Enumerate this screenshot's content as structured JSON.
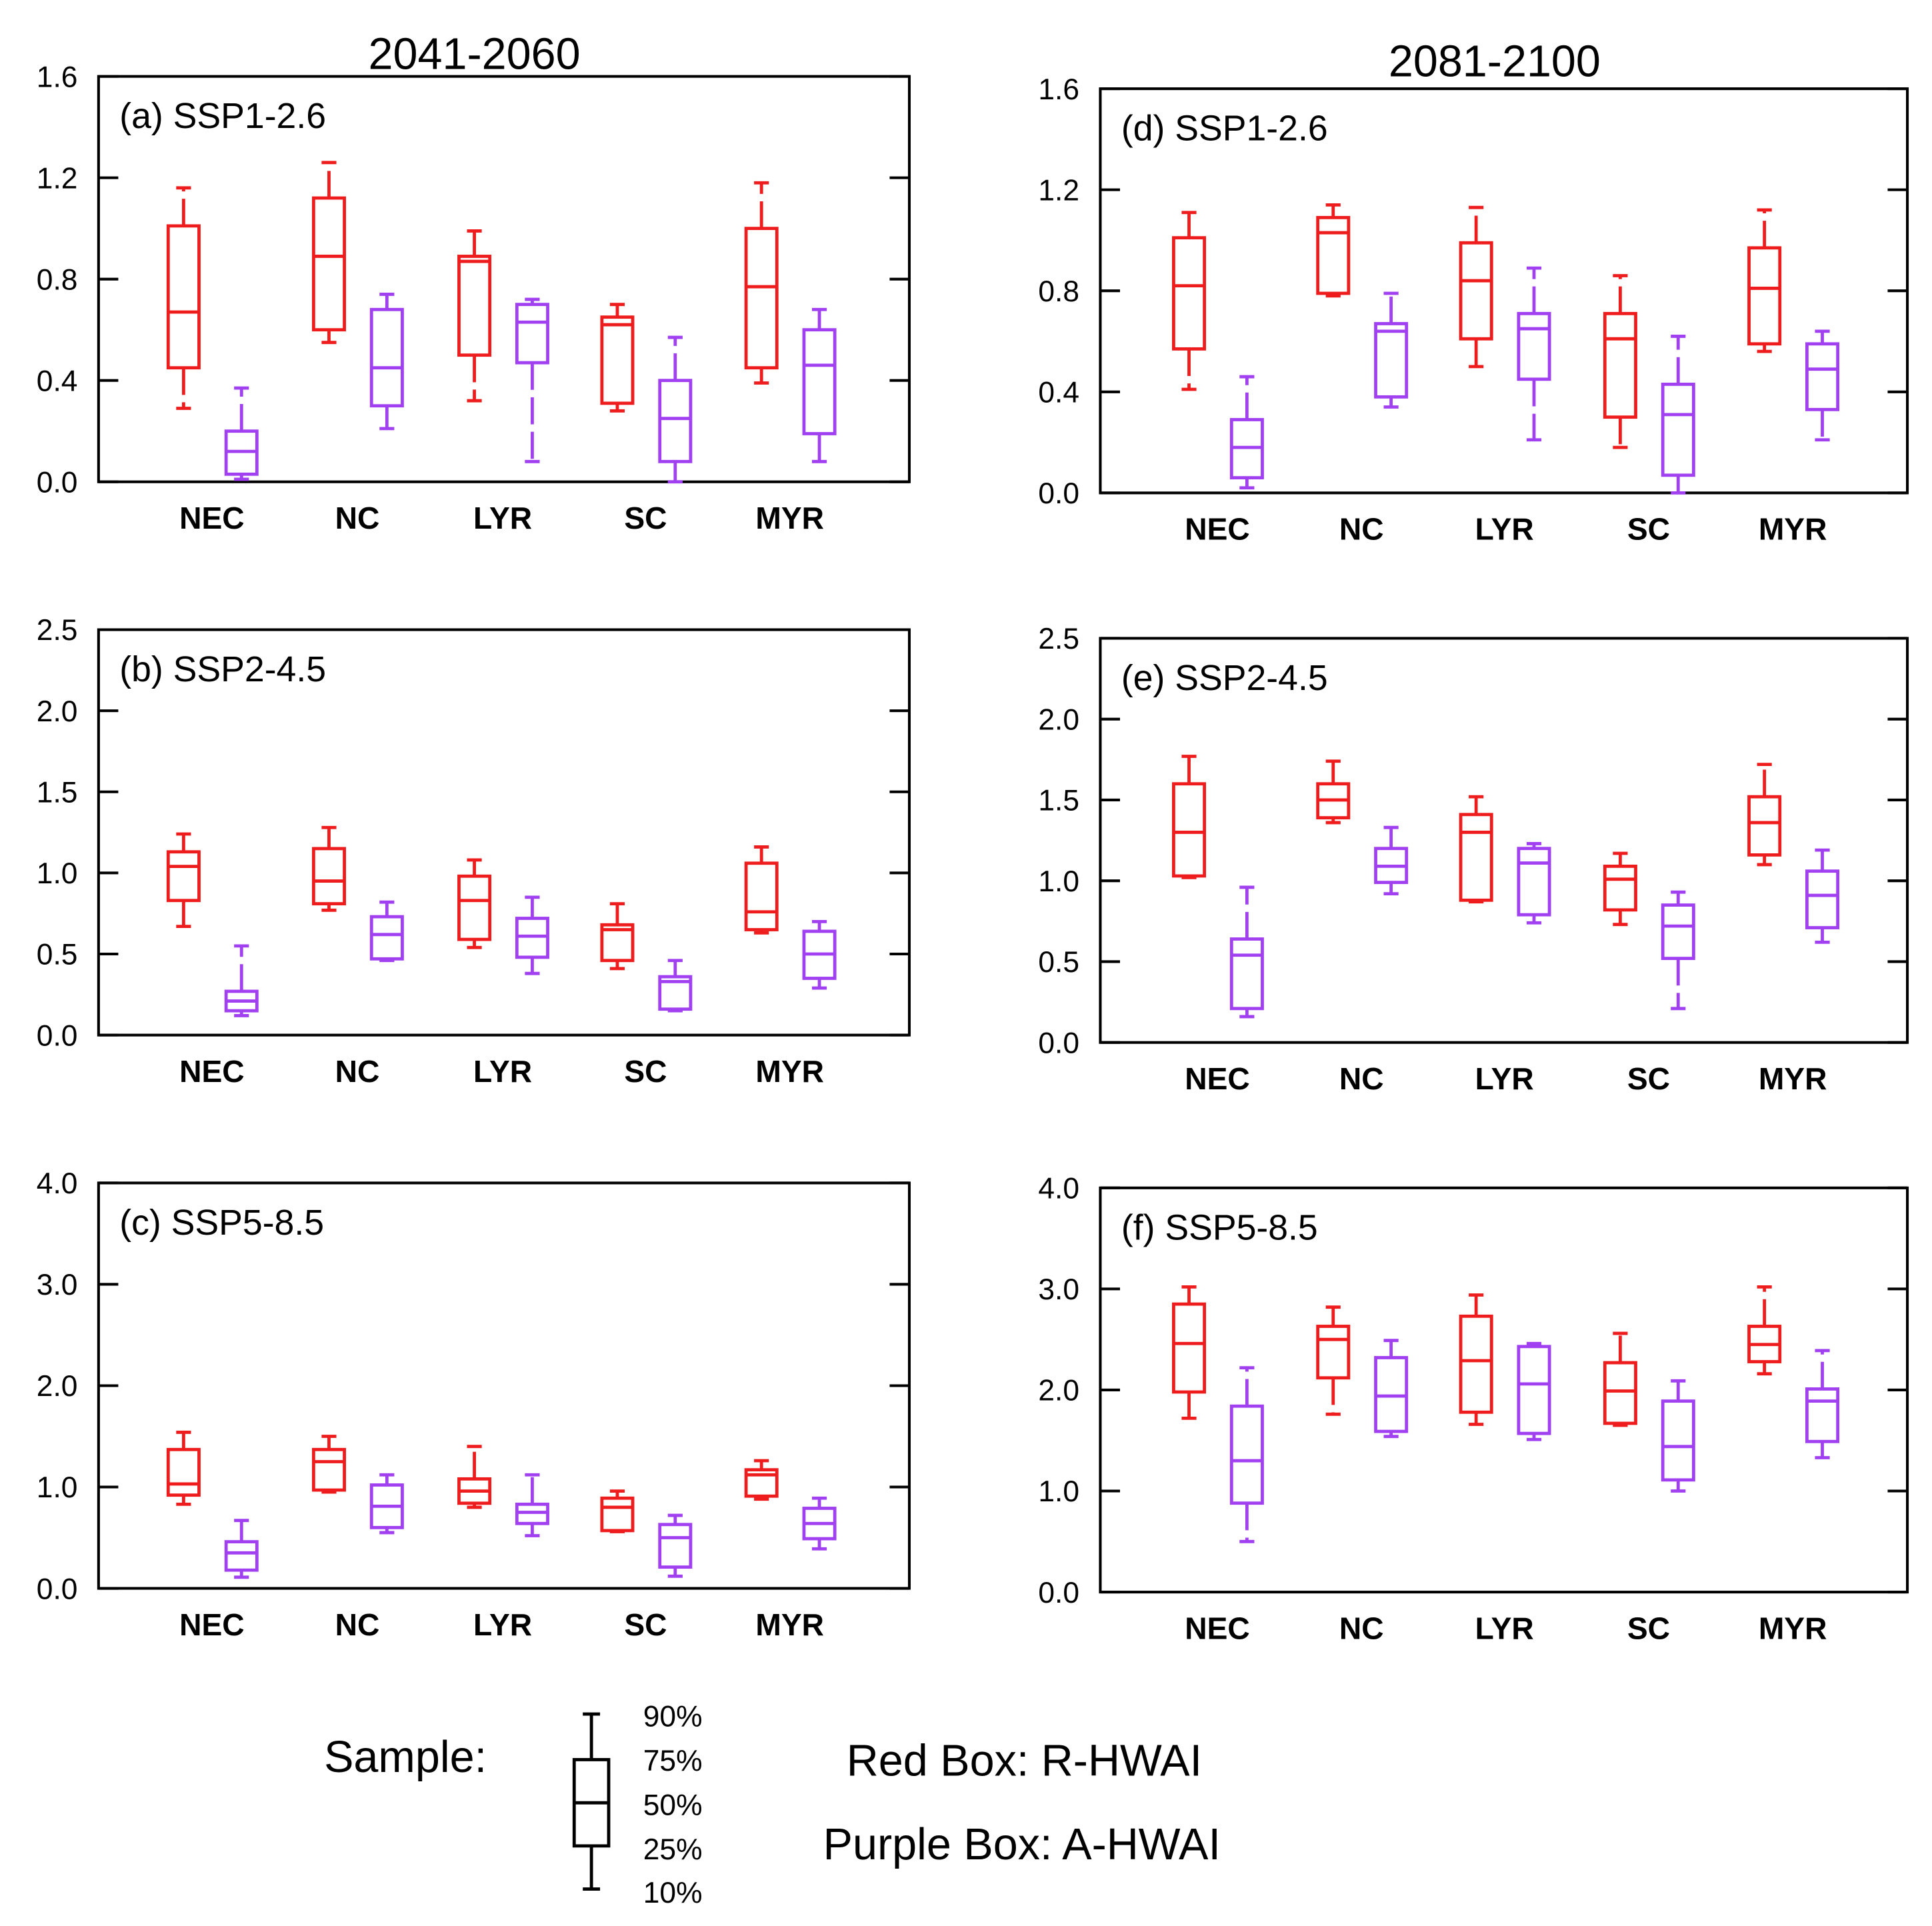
{
  "column_titles": [
    "2041-2060",
    "2081-2100"
  ],
  "legend": {
    "sample_label": "Sample:",
    "percentiles": [
      "90%",
      "75%",
      "50%",
      "25%",
      "10%"
    ],
    "red_label": "Red Box: R-HWAI",
    "purple_label": "Purple Box: A-HWAI"
  },
  "chart_data": [
    {
      "type": "box",
      "title": "(a) SSP1-2.6",
      "categories": [
        "NEC",
        "NC",
        "LYR",
        "SC",
        "MYR"
      ],
      "ylim": [
        0,
        1.6
      ],
      "yticks": [
        0.0,
        0.4,
        0.8,
        1.2,
        1.6
      ],
      "ytick_labels": [
        "0.0",
        "0.4",
        "0.8",
        "1.2",
        "1.6"
      ],
      "series": [
        {
          "color": "#ee1c1c",
          "p10": [
            0.29,
            0.55,
            0.32,
            0.28,
            0.39
          ],
          "p25": [
            0.45,
            0.6,
            0.5,
            0.31,
            0.45
          ],
          "p50": [
            0.67,
            0.89,
            0.87,
            0.62,
            0.77
          ],
          "p75": [
            1.01,
            1.12,
            0.89,
            0.65,
            1.0
          ],
          "p90": [
            1.16,
            1.26,
            0.99,
            0.7,
            1.18
          ]
        },
        {
          "color": "#a040f0",
          "p10": [
            0.01,
            0.21,
            0.08,
            0.0,
            0.08
          ],
          "p25": [
            0.03,
            0.3,
            0.47,
            0.08,
            0.19
          ],
          "p50": [
            0.12,
            0.45,
            0.63,
            0.25,
            0.46
          ],
          "p75": [
            0.2,
            0.68,
            0.7,
            0.4,
            0.6
          ],
          "p90": [
            0.37,
            0.74,
            0.72,
            0.57,
            0.68
          ]
        }
      ]
    },
    {
      "type": "box",
      "title": "(b) SSP2-4.5",
      "categories": [
        "NEC",
        "NC",
        "LYR",
        "SC",
        "MYR"
      ],
      "ylim": [
        0,
        2.5
      ],
      "yticks": [
        0.0,
        0.5,
        1.0,
        1.5,
        2.0,
        2.5
      ],
      "ytick_labels": [
        "0.0",
        "0.5",
        "1.0",
        "1.5",
        "2.0",
        "2.5"
      ],
      "series": [
        {
          "color": "#ee1c1c",
          "p10": [
            0.67,
            0.77,
            0.54,
            0.41,
            0.63
          ],
          "p25": [
            0.83,
            0.81,
            0.59,
            0.46,
            0.65
          ],
          "p50": [
            1.04,
            0.95,
            0.83,
            0.65,
            0.76
          ],
          "p75": [
            1.13,
            1.15,
            0.98,
            0.68,
            1.06
          ],
          "p90": [
            1.24,
            1.28,
            1.08,
            0.81,
            1.16
          ]
        },
        {
          "color": "#a040f0",
          "p10": [
            0.12,
            0.46,
            0.38,
            0.15,
            0.29
          ],
          "p25": [
            0.15,
            0.47,
            0.48,
            0.16,
            0.35
          ],
          "p50": [
            0.21,
            0.62,
            0.61,
            0.33,
            0.5
          ],
          "p75": [
            0.27,
            0.73,
            0.72,
            0.36,
            0.64
          ],
          "p90": [
            0.55,
            0.82,
            0.85,
            0.46,
            0.7
          ]
        }
      ]
    },
    {
      "type": "box",
      "title": "(c) SSP5-8.5",
      "categories": [
        "NEC",
        "NC",
        "LYR",
        "SC",
        "MYR"
      ],
      "ylim": [
        0,
        4.0
      ],
      "yticks": [
        0.0,
        1.0,
        2.0,
        3.0,
        4.0
      ],
      "ytick_labels": [
        "0.0",
        "1.0",
        "2.0",
        "3.0",
        "4.0"
      ],
      "series": [
        {
          "color": "#ee1c1c",
          "p10": [
            0.83,
            0.95,
            0.8,
            0.56,
            0.88
          ],
          "p25": [
            0.92,
            0.97,
            0.84,
            0.57,
            0.91
          ],
          "p50": [
            1.03,
            1.25,
            0.96,
            0.8,
            1.12
          ],
          "p75": [
            1.37,
            1.37,
            1.08,
            0.89,
            1.17
          ],
          "p90": [
            1.54,
            1.5,
            1.4,
            0.96,
            1.26
          ]
        },
        {
          "color": "#a040f0",
          "p10": [
            0.11,
            0.55,
            0.52,
            0.12,
            0.39
          ],
          "p25": [
            0.18,
            0.6,
            0.64,
            0.21,
            0.49
          ],
          "p50": [
            0.35,
            0.81,
            0.75,
            0.5,
            0.64
          ],
          "p75": [
            0.46,
            1.02,
            0.83,
            0.63,
            0.79
          ],
          "p90": [
            0.67,
            1.12,
            1.12,
            0.72,
            0.89
          ]
        }
      ]
    },
    {
      "type": "box",
      "title": "(d) SSP1-2.6",
      "categories": [
        "NEC",
        "NC",
        "LYR",
        "SC",
        "MYR"
      ],
      "ylim": [
        0,
        1.6
      ],
      "yticks": [
        0.0,
        0.4,
        0.8,
        1.2,
        1.6
      ],
      "ytick_labels": [
        "0.0",
        "0.4",
        "0.8",
        "1.2",
        "1.6"
      ],
      "series": [
        {
          "color": "#ee1c1c",
          "p10": [
            0.41,
            0.78,
            0.5,
            0.18,
            0.56
          ],
          "p25": [
            0.57,
            0.79,
            0.61,
            0.3,
            0.59
          ],
          "p50": [
            0.82,
            1.03,
            0.84,
            0.61,
            0.81
          ],
          "p75": [
            1.01,
            1.09,
            0.99,
            0.71,
            0.97
          ],
          "p90": [
            1.11,
            1.14,
            1.13,
            0.86,
            1.12
          ]
        },
        {
          "color": "#a040f0",
          "p10": [
            0.02,
            0.34,
            0.21,
            0.0,
            0.21
          ],
          "p25": [
            0.06,
            0.38,
            0.45,
            0.07,
            0.33
          ],
          "p50": [
            0.18,
            0.64,
            0.65,
            0.31,
            0.49
          ],
          "p75": [
            0.29,
            0.67,
            0.71,
            0.43,
            0.59
          ],
          "p90": [
            0.46,
            0.79,
            0.89,
            0.62,
            0.64
          ]
        }
      ]
    },
    {
      "type": "box",
      "title": "(e) SSP2-4.5",
      "categories": [
        "NEC",
        "NC",
        "LYR",
        "SC",
        "MYR"
      ],
      "ylim": [
        0,
        2.5
      ],
      "yticks": [
        0.0,
        0.5,
        1.0,
        1.5,
        2.0,
        2.5
      ],
      "ytick_labels": [
        "0.0",
        "0.5",
        "1.0",
        "1.5",
        "2.0",
        "2.5"
      ],
      "series": [
        {
          "color": "#ee1c1c",
          "p10": [
            1.02,
            1.36,
            0.87,
            0.73,
            1.1
          ],
          "p25": [
            1.03,
            1.39,
            0.88,
            0.82,
            1.16
          ],
          "p50": [
            1.3,
            1.5,
            1.3,
            1.01,
            1.36
          ],
          "p75": [
            1.6,
            1.6,
            1.41,
            1.09,
            1.52
          ],
          "p90": [
            1.77,
            1.74,
            1.52,
            1.17,
            1.72
          ]
        },
        {
          "color": "#a040f0",
          "p10": [
            0.16,
            0.92,
            0.74,
            0.21,
            0.62
          ],
          "p25": [
            0.21,
            0.99,
            0.79,
            0.52,
            0.71
          ],
          "p50": [
            0.54,
            1.09,
            1.11,
            0.72,
            0.91
          ],
          "p75": [
            0.64,
            1.2,
            1.2,
            0.85,
            1.06
          ],
          "p90": [
            0.96,
            1.33,
            1.23,
            0.93,
            1.19
          ]
        }
      ]
    },
    {
      "type": "box",
      "title": "(f) SSP5-8.5",
      "categories": [
        "NEC",
        "NC",
        "LYR",
        "SC",
        "MYR"
      ],
      "ylim": [
        0,
        4.0
      ],
      "yticks": [
        0.0,
        1.0,
        2.0,
        3.0,
        4.0
      ],
      "ytick_labels": [
        "0.0",
        "1.0",
        "2.0",
        "3.0",
        "4.0"
      ],
      "series": [
        {
          "color": "#ee1c1c",
          "p10": [
            1.72,
            1.76,
            1.66,
            1.65,
            2.16
          ],
          "p25": [
            1.98,
            2.12,
            1.78,
            1.67,
            2.28
          ],
          "p50": [
            2.46,
            2.5,
            2.29,
            1.99,
            2.45
          ],
          "p75": [
            2.85,
            2.63,
            2.73,
            2.27,
            2.63
          ],
          "p90": [
            3.02,
            2.82,
            2.94,
            2.56,
            3.02
          ]
        },
        {
          "color": "#a040f0",
          "p10": [
            0.5,
            1.54,
            1.51,
            1.0,
            1.33
          ],
          "p25": [
            0.88,
            1.59,
            1.57,
            1.11,
            1.49
          ],
          "p50": [
            1.3,
            1.94,
            2.06,
            1.44,
            1.89
          ],
          "p75": [
            1.84,
            2.32,
            2.43,
            1.89,
            2.01
          ],
          "p90": [
            2.22,
            2.49,
            2.46,
            2.09,
            2.39
          ]
        }
      ]
    }
  ]
}
